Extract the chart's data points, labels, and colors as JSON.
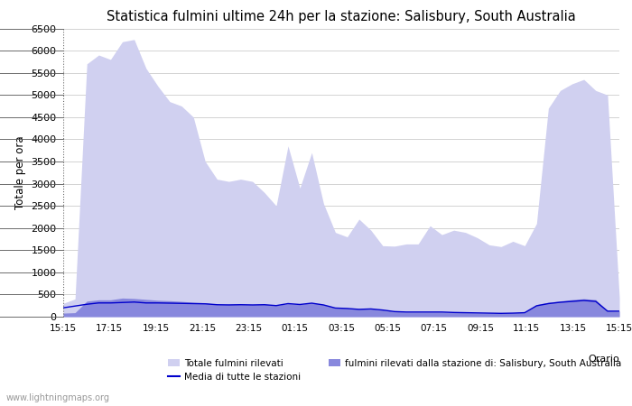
{
  "title": "Statistica fulmini ultime 24h per la stazione: Salisbury, South Australia",
  "ylabel": "Totale per ora",
  "xlabel_legend": "Orario",
  "watermark": "www.lightningmaps.org",
  "xtick_labels": [
    "15:15",
    "17:15",
    "19:15",
    "21:15",
    "23:15",
    "01:15",
    "03:15",
    "05:15",
    "07:15",
    "09:15",
    "11:15",
    "13:15",
    "15:15"
  ],
  "ylim": [
    0,
    6500
  ],
  "yticks": [
    0,
    500,
    1000,
    1500,
    2000,
    2500,
    3000,
    3500,
    4000,
    4500,
    5000,
    5500,
    6000,
    6500
  ],
  "bg_color": "#ffffff",
  "grid_color": "#cccccc",
  "fill_total_color": "#d0d0f0",
  "fill_station_color": "#8888dd",
  "line_media_color": "#0000cc",
  "legend_total": "Totale fulmini rilevati",
  "legend_media": "Media di tutte le stazioni",
  "legend_station": "fulmini rilevati dalla stazione di: Salisbury, South Australia",
  "total_y": [
    300,
    400,
    5700,
    5900,
    5800,
    6200,
    6250,
    5600,
    5200,
    4850,
    4750,
    4500,
    3500,
    3100,
    3050,
    3100,
    3050,
    2800,
    2500,
    3850,
    2900,
    3700,
    2550,
    1900,
    1800,
    2200,
    1950,
    1600,
    1590,
    1640,
    1640,
    2050,
    1850,
    1950,
    1900,
    1780,
    1620,
    1580,
    1700,
    1600,
    2100,
    4700,
    5100,
    5250,
    5350,
    5100,
    5000,
    430
  ],
  "station_y": [
    80,
    90,
    350,
    380,
    380,
    420,
    410,
    390,
    370,
    360,
    345,
    325,
    315,
    275,
    285,
    285,
    275,
    285,
    255,
    295,
    275,
    315,
    275,
    205,
    195,
    175,
    185,
    155,
    115,
    105,
    105,
    105,
    105,
    95,
    90,
    85,
    80,
    75,
    85,
    95,
    275,
    325,
    355,
    385,
    405,
    385,
    135,
    125
  ],
  "media_y": [
    200,
    240,
    280,
    310,
    310,
    320,
    330,
    310,
    310,
    305,
    300,
    295,
    290,
    270,
    265,
    270,
    265,
    270,
    250,
    295,
    275,
    305,
    265,
    195,
    185,
    165,
    175,
    150,
    115,
    105,
    105,
    105,
    105,
    95,
    90,
    85,
    80,
    75,
    80,
    90,
    245,
    295,
    325,
    345,
    365,
    345,
    125,
    125
  ]
}
